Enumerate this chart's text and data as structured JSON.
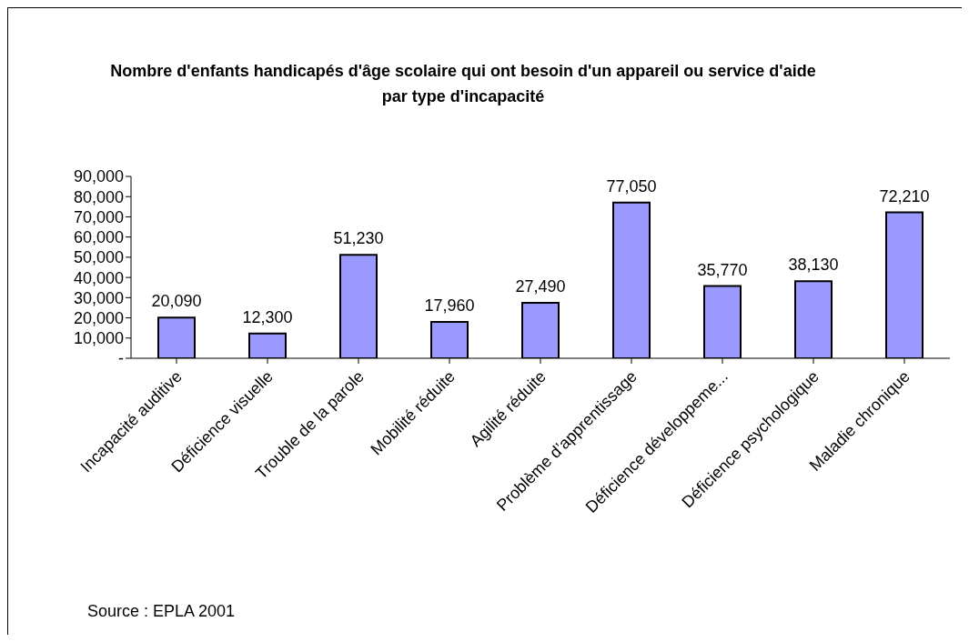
{
  "chart_data": {
    "type": "bar",
    "title": "Nombre d'enfants handicapés d'âge scolaire qui ont besoin d'un appareil ou service d'aide par type d'incapacité",
    "categories": [
      "Incapacité auditive",
      "Déficience visuelle",
      "Trouble de la parole",
      "Mobilité réduite",
      "Agilité réduite",
      "Problème d’apprentissage",
      "Déficience développeme...",
      "Déficience psychologique",
      "Maladie chronique"
    ],
    "values": [
      20090,
      12300,
      51230,
      17960,
      27490,
      77050,
      35770,
      38130,
      72210
    ],
    "value_labels": [
      "20,090",
      "12,300",
      "51,230",
      "17,960",
      "27,490",
      "77,050",
      "35,770",
      "38,130",
      "72,210"
    ],
    "color": "#9999ff",
    "ylim": [
      0,
      90000
    ],
    "yticks": [
      {
        "value": 0,
        "label": "-"
      },
      {
        "value": 10000,
        "label": "10,000"
      },
      {
        "value": 20000,
        "label": "20,000"
      },
      {
        "value": 30000,
        "label": "30,000"
      },
      {
        "value": 40000,
        "label": "40,000"
      },
      {
        "value": 50000,
        "label": "50,000"
      },
      {
        "value": 60000,
        "label": "60,000"
      },
      {
        "value": 70000,
        "label": "70,000"
      },
      {
        "value": 80000,
        "label": "80,000"
      },
      {
        "value": 90000,
        "label": "90,000"
      }
    ],
    "grid": false,
    "legend": false,
    "annotations": [
      "Source : EPLA 2001"
    ]
  }
}
